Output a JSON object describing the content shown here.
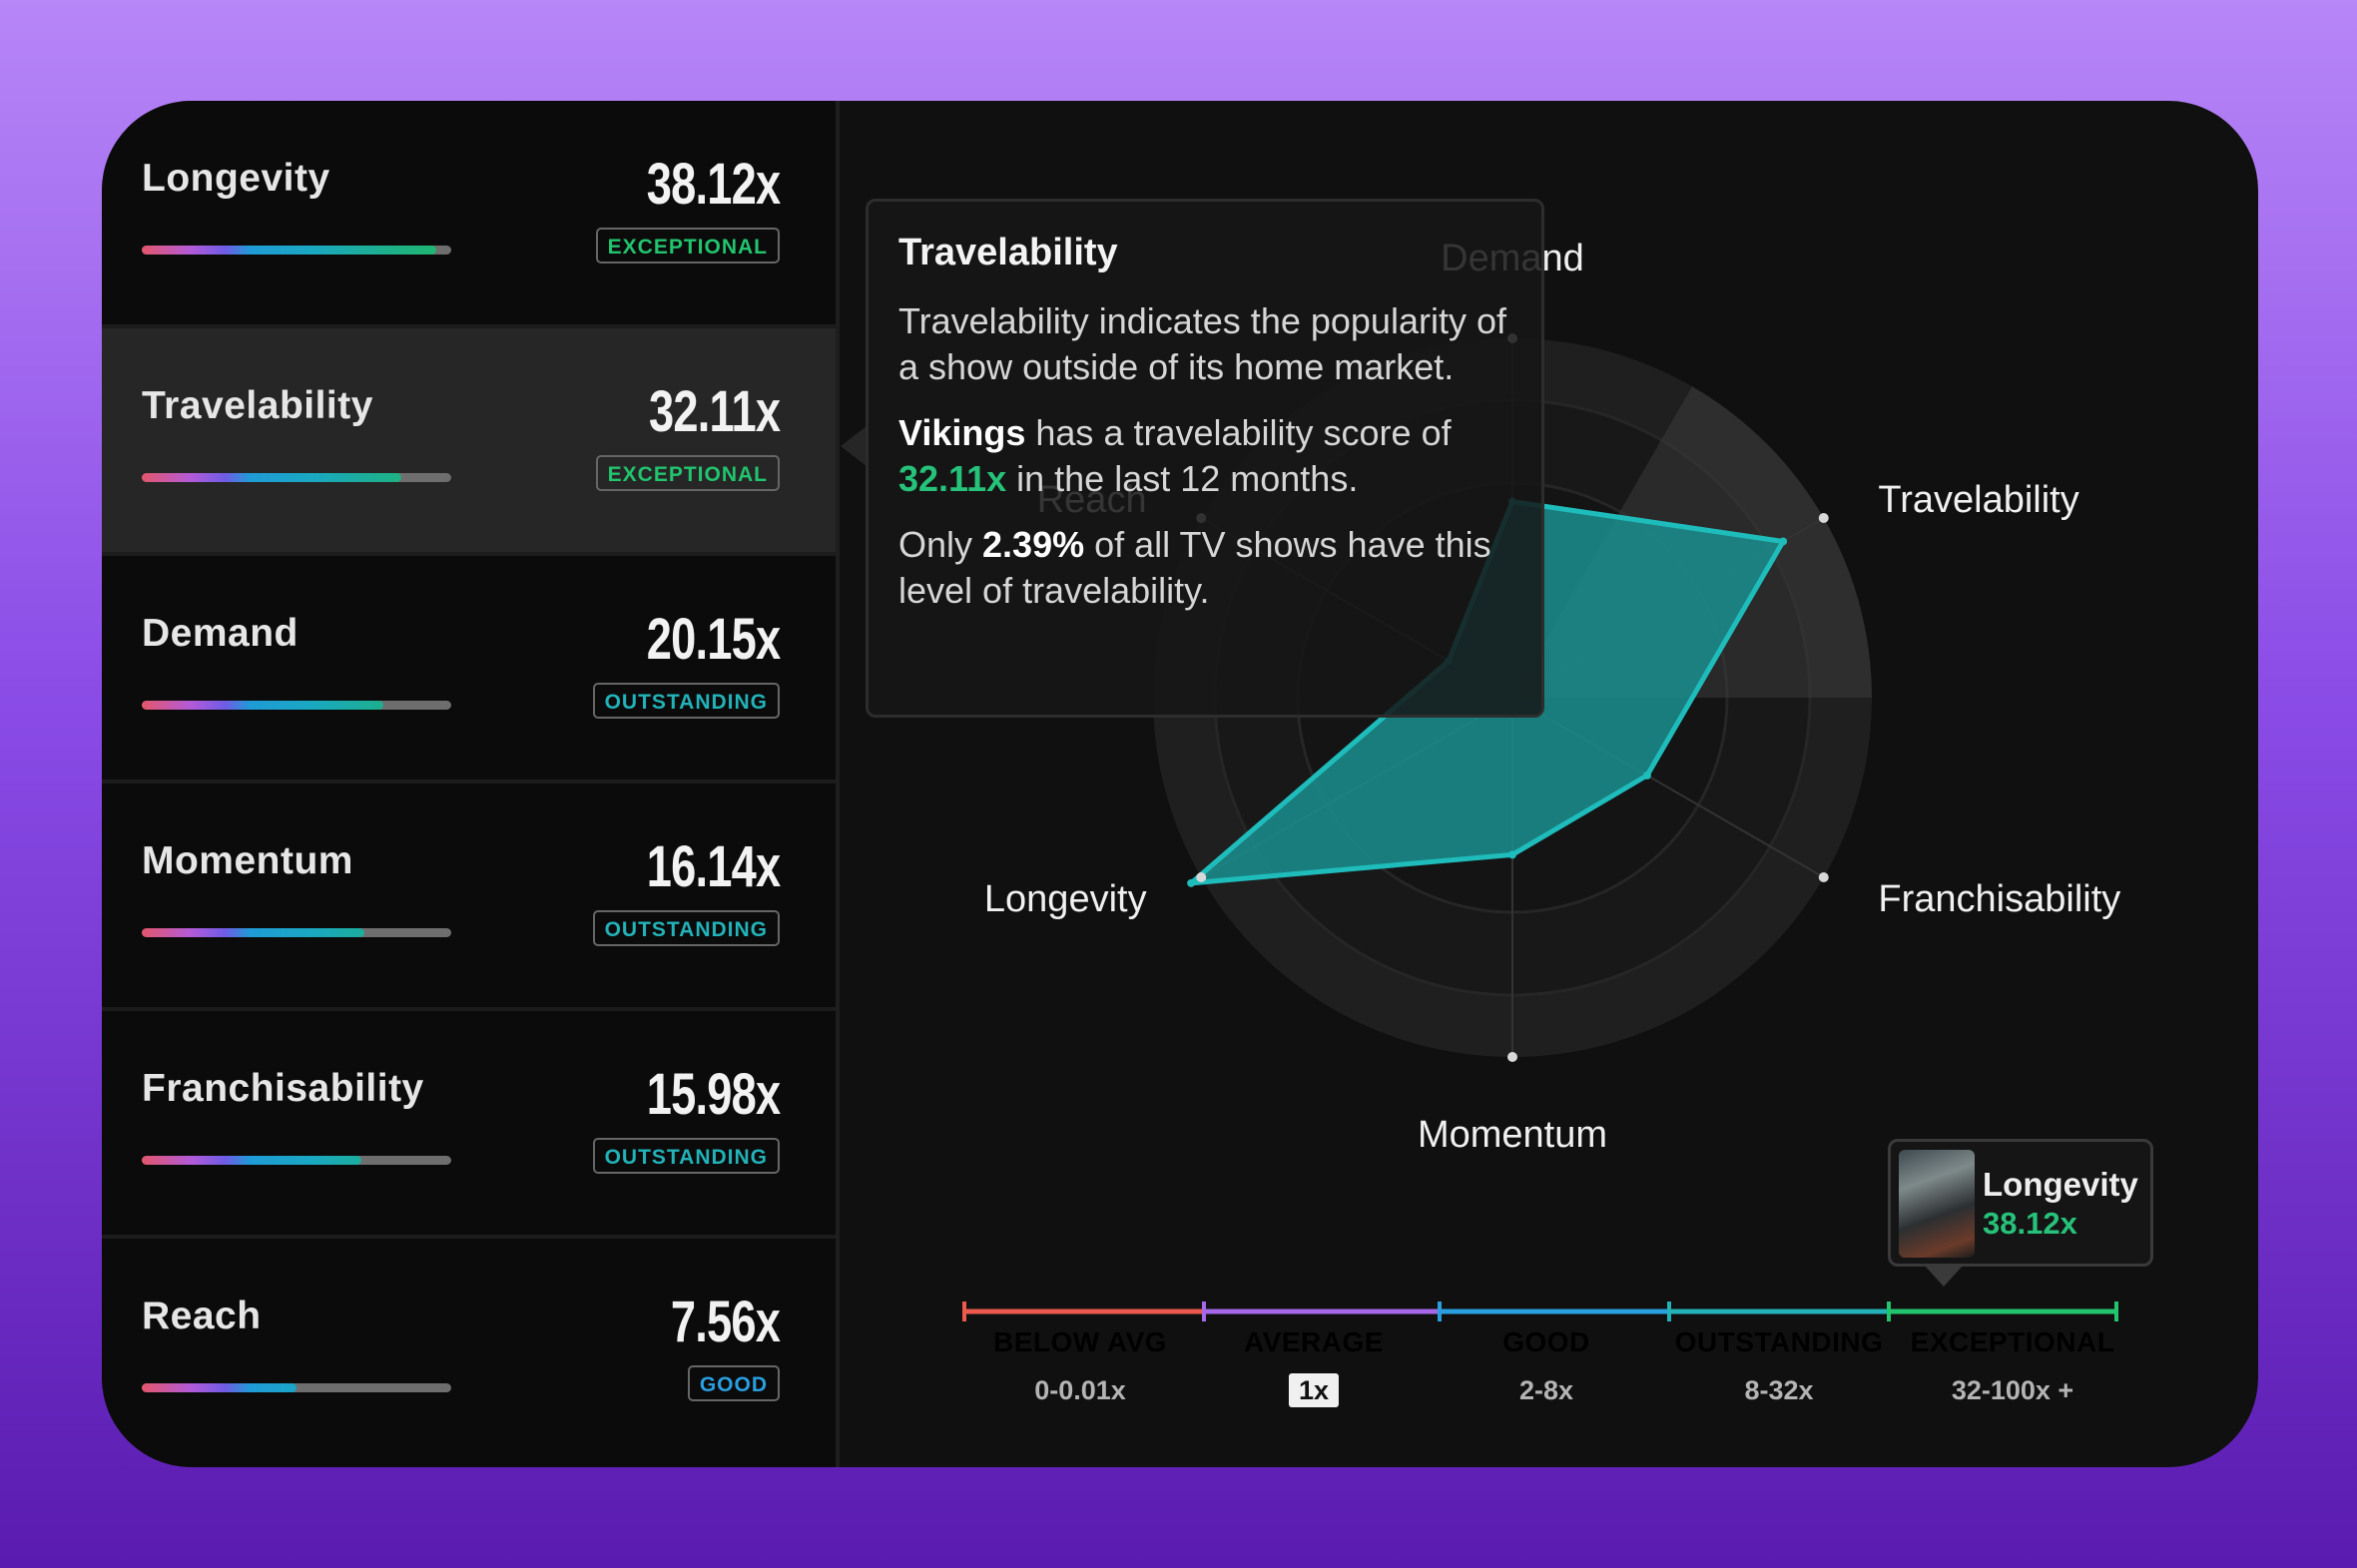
{
  "metrics": [
    {
      "name": "Longevity",
      "score": "38.12x",
      "badge": "EXCEPTIONAL",
      "badge_color": "#22c46e",
      "fill": 0.95,
      "active": false
    },
    {
      "name": "Travelability",
      "score": "32.11x",
      "badge": "EXCEPTIONAL",
      "badge_color": "#22c46e",
      "fill": 0.84,
      "active": true
    },
    {
      "name": "Demand",
      "score": "20.15x",
      "badge": "OUTSTANDING",
      "badge_color": "#22b2b8",
      "fill": 0.78,
      "active": false
    },
    {
      "name": "Momentum",
      "score": "16.14x",
      "badge": "OUTSTANDING",
      "badge_color": "#22b2b8",
      "fill": 0.72,
      "active": false
    },
    {
      "name": "Franchisability",
      "score": "15.98x",
      "badge": "OUTSTANDING",
      "badge_color": "#22b2b8",
      "fill": 0.71,
      "active": false
    },
    {
      "name": "Reach",
      "score": "7.56x",
      "badge": "GOOD",
      "badge_color": "#2a9fe0",
      "fill": 0.5,
      "active": false
    }
  ],
  "tooltip": {
    "title": "Travelability",
    "description": "Travelability indicates the popularity of a show outside of its home market.",
    "show_name": "Vikings",
    "score_text_1": " has a travelability score of ",
    "score_value": "32.11x",
    "score_text_2": " in the last 12 months.",
    "only_text": "Only ",
    "percent": "2.39%",
    "percent_text": " of all TV shows have this level of travelability."
  },
  "chart_data": {
    "type": "radar",
    "axes": [
      "Demand",
      "Travelability",
      "Franchisability",
      "Momentum",
      "Longevity",
      "Reach"
    ],
    "values": [
      20.15,
      32.11,
      15.98,
      16.14,
      38.12,
      7.56
    ],
    "fill_color": "#1a8f8f",
    "stroke_color": "#1fbcbc"
  },
  "scale": [
    {
      "label": "BELOW AVG",
      "range": "0-0.01x",
      "color": "#ec5a4e"
    },
    {
      "label": "AVERAGE",
      "range": "1x",
      "color": "#a468e8",
      "chip": true
    },
    {
      "label": "GOOD",
      "range": "2-8x",
      "color": "#2a9fe0"
    },
    {
      "label": "OUTSTANDING",
      "range": "8-32x",
      "color": "#22b2b8"
    },
    {
      "label": "EXCEPTIONAL",
      "range": "32-100x +",
      "color": "#22c46e"
    }
  ],
  "marker": {
    "name": "Longevity",
    "value": "38.12x"
  }
}
